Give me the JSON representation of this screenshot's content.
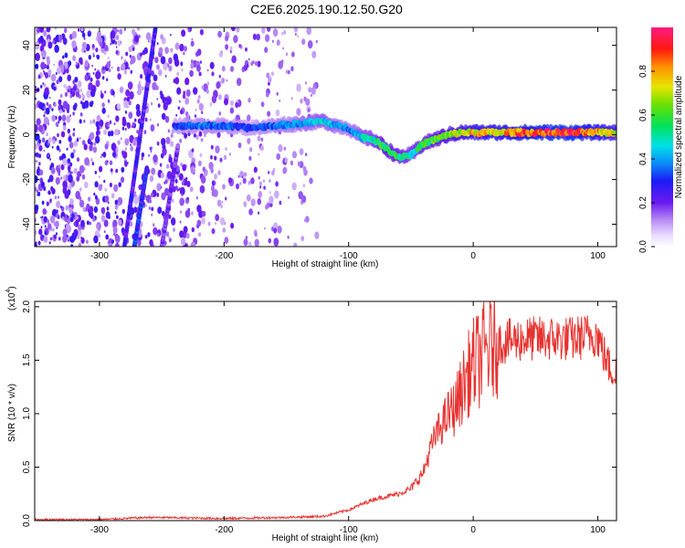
{
  "title": "C2E6.2025.190.12.50.G20",
  "chart_data": [
    {
      "type": "heatmap",
      "xlabel": "Height of straight line (km)",
      "ylabel": "Frequency (Hz)",
      "xlim": [
        -352,
        115
      ],
      "ylim": [
        -50,
        48
      ],
      "xticks": [
        -300,
        -200,
        -100,
        0,
        100
      ],
      "yticks": [
        -40,
        -20,
        0,
        20,
        40
      ],
      "colorbar": {
        "label": "Normalized spectral amplitude",
        "range": [
          0,
          1
        ],
        "ticks": [
          "0.0",
          "0.2",
          "0.4",
          "0.6",
          "0.8"
        ]
      },
      "ridge": {
        "x": [
          -240,
          -220,
          -200,
          -180,
          -160,
          -140,
          -120,
          -110,
          -100,
          -90,
          -80,
          -70,
          -60,
          -50,
          -40,
          -30,
          -20,
          -10,
          0,
          20,
          40,
          60,
          80,
          100,
          115
        ],
        "y": [
          4,
          4,
          4,
          3,
          4,
          5,
          6,
          4,
          3,
          -1,
          -2,
          -6,
          -10,
          -9,
          -4,
          -2,
          0,
          1,
          1,
          1,
          1,
          1,
          1,
          1,
          1
        ],
        "amplitude": [
          0.3,
          0.35,
          0.35,
          0.3,
          0.35,
          0.4,
          0.45,
          0.4,
          0.35,
          0.45,
          0.5,
          0.6,
          0.55,
          0.5,
          0.55,
          0.6,
          0.65,
          0.7,
          0.75,
          0.75,
          0.85,
          0.9,
          0.9,
          0.8,
          0.7
        ]
      },
      "streaks": [
        {
          "x": [
            -280,
            -255
          ],
          "y": [
            -50,
            48
          ],
          "amplitude": 0.25
        },
        {
          "x": [
            -272,
            -262
          ],
          "y": [
            -50,
            -15
          ],
          "amplitude": 0.3
        },
        {
          "x": [
            -250,
            -237
          ],
          "y": [
            -50,
            -5
          ],
          "amplitude": 0.2
        }
      ],
      "noise_region": [
        -352,
        -125
      ]
    },
    {
      "type": "line",
      "xlabel": "Height of straight line (km)",
      "ylabel": "SNR (10 * v/v)",
      "scale_label": "(x10",
      "scale_exp": "4",
      "scale_close": ")",
      "xlim": [
        -352,
        115
      ],
      "ylim": [
        0,
        2.05
      ],
      "xticks": [
        -300,
        -200,
        -100,
        0,
        100
      ],
      "yticks": [
        0.0,
        0.5,
        1.0,
        1.5,
        2.0
      ],
      "ytick_labels": [
        "0.0",
        "0.5",
        "1.0",
        "1.5",
        "2.0"
      ],
      "series": [
        {
          "color": "#e8322f",
          "x": [
            -352,
            -300,
            -260,
            -200,
            -150,
            -120,
            -100,
            -80,
            -60,
            -50,
            -40,
            -35,
            -30,
            -25,
            -20,
            -15,
            -10,
            -5,
            0,
            10,
            20,
            30,
            40,
            50,
            60,
            70,
            80,
            90,
            95,
            100,
            105,
            110,
            115
          ],
          "y": [
            0.01,
            0.01,
            0.03,
            0.02,
            0.03,
            0.04,
            0.1,
            0.2,
            0.25,
            0.3,
            0.45,
            0.65,
            0.8,
            0.9,
            1.0,
            1.05,
            1.2,
            1.35,
            1.45,
            1.58,
            1.66,
            1.68,
            1.7,
            1.7,
            1.7,
            1.7,
            1.7,
            1.72,
            1.75,
            1.73,
            1.55,
            1.42,
            1.38
          ]
        }
      ]
    }
  ]
}
